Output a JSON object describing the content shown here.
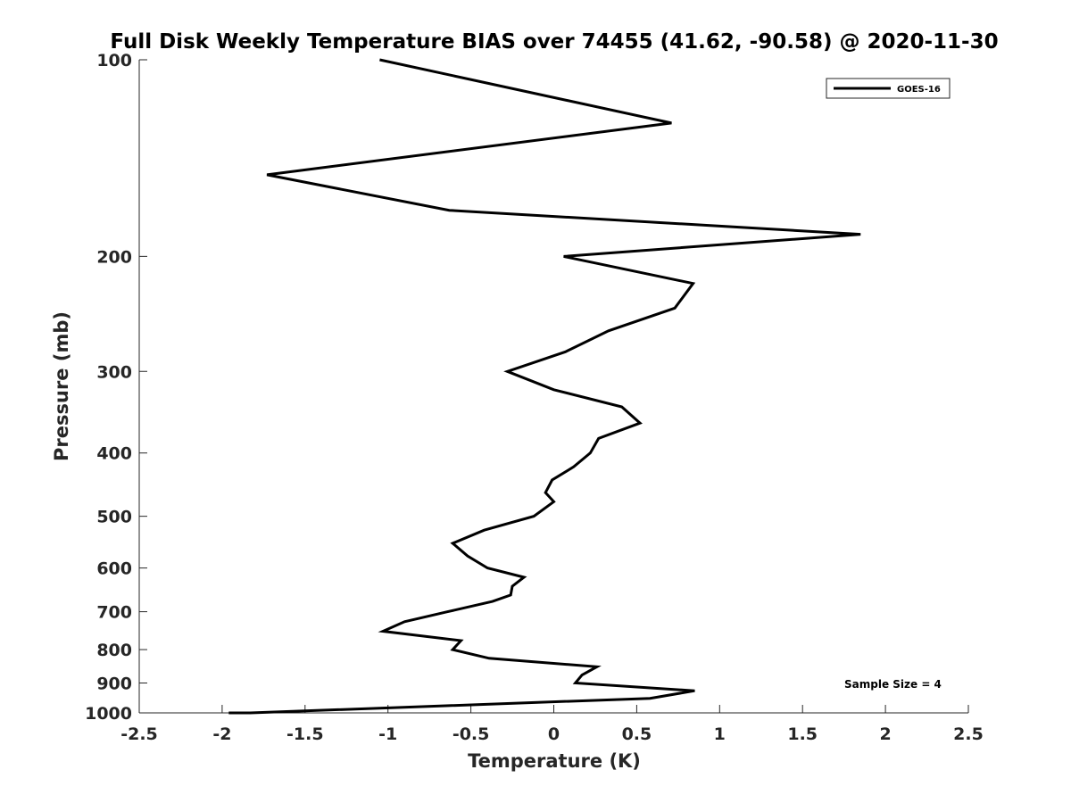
{
  "chart_data": {
    "type": "line",
    "title": "Full Disk Weekly Temperature BIAS over 74455 (41.62, -90.58) @ 2020-11-30",
    "xlabel": "Temperature (K)",
    "ylabel": "Pressure (mb)",
    "xlim": [
      -2.5,
      2.5
    ],
    "ylim": [
      100,
      1000
    ],
    "y_scale": "log",
    "y_reversed": true,
    "x_ticks": [
      -2.5,
      -2,
      -1.5,
      -1,
      -0.5,
      0,
      0.5,
      1,
      1.5,
      2,
      2.5
    ],
    "x_tick_labels": [
      "-2.5",
      "-2",
      "-1.5",
      "-1",
      "-0.5",
      "0",
      "0.5",
      "1",
      "1.5",
      "2",
      "2.5"
    ],
    "y_ticks": [
      100,
      200,
      300,
      400,
      500,
      600,
      700,
      800,
      900,
      1000
    ],
    "y_tick_labels": [
      "100",
      "200",
      "300",
      "400",
      "500",
      "600",
      "700",
      "800",
      "900",
      "1000"
    ],
    "grid": false,
    "legend_position": "top-right",
    "series": [
      {
        "name": "GOES-16",
        "color": "#000000",
        "points": [
          {
            "x": -1.05,
            "y": 100
          },
          {
            "x": 0.71,
            "y": 125
          },
          {
            "x": -1.73,
            "y": 150
          },
          {
            "x": -0.63,
            "y": 170
          },
          {
            "x": 1.85,
            "y": 185
          },
          {
            "x": 0.06,
            "y": 200
          },
          {
            "x": 0.84,
            "y": 220
          },
          {
            "x": 0.73,
            "y": 240
          },
          {
            "x": 0.33,
            "y": 260
          },
          {
            "x": 0.07,
            "y": 280
          },
          {
            "x": -0.28,
            "y": 300
          },
          {
            "x": 0.0,
            "y": 320
          },
          {
            "x": 0.41,
            "y": 340
          },
          {
            "x": 0.52,
            "y": 360
          },
          {
            "x": 0.27,
            "y": 380
          },
          {
            "x": 0.22,
            "y": 400
          },
          {
            "x": 0.12,
            "y": 420
          },
          {
            "x": -0.01,
            "y": 440
          },
          {
            "x": -0.05,
            "y": 460
          },
          {
            "x": 0.0,
            "y": 475
          },
          {
            "x": -0.12,
            "y": 500
          },
          {
            "x": -0.42,
            "y": 525
          },
          {
            "x": -0.61,
            "y": 550
          },
          {
            "x": -0.52,
            "y": 575
          },
          {
            "x": -0.4,
            "y": 600
          },
          {
            "x": -0.18,
            "y": 620
          },
          {
            "x": -0.25,
            "y": 640
          },
          {
            "x": -0.26,
            "y": 660
          },
          {
            "x": -0.37,
            "y": 675
          },
          {
            "x": -0.64,
            "y": 700
          },
          {
            "x": -0.9,
            "y": 725
          },
          {
            "x": -1.03,
            "y": 750
          },
          {
            "x": -0.56,
            "y": 775
          },
          {
            "x": -0.61,
            "y": 800
          },
          {
            "x": -0.39,
            "y": 825
          },
          {
            "x": 0.26,
            "y": 850
          },
          {
            "x": 0.17,
            "y": 875
          },
          {
            "x": 0.13,
            "y": 900
          },
          {
            "x": 0.85,
            "y": 925
          },
          {
            "x": 0.58,
            "y": 950
          },
          {
            "x": -0.65,
            "y": 975
          },
          {
            "x": -1.83,
            "y": 1000
          },
          {
            "x": -1.96,
            "y": 1025
          }
        ]
      }
    ],
    "annotations": [
      {
        "text": "Sample Size = 4",
        "x": 1.5,
        "y": 900
      }
    ]
  }
}
